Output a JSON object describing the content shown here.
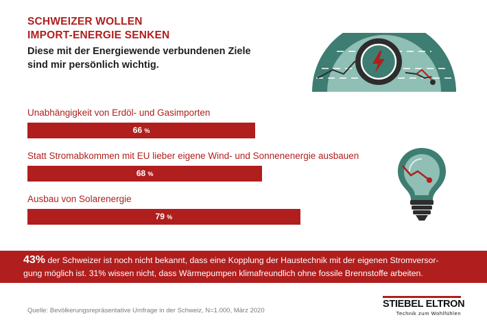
{
  "header": {
    "title_line1": "SCHWEIZER WOLLEN",
    "title_line2": "IMPORT-ENERGIE SENKEN",
    "subtitle_line1": "Diese mit der Energiewende verbundenen Ziele",
    "subtitle_line2": "sind mir persönlich wichtig."
  },
  "chart_data": {
    "type": "bar",
    "orientation": "horizontal",
    "categories": [
      "Unabhängigkeit von Erdöl- und Gasimporten",
      "Statt Stromabkommen mit EU lieber eigene Wind- und Sonnenenergie ausbauen",
      "Ausbau von Solarenergie"
    ],
    "values": [
      66,
      68,
      79
    ],
    "value_labels": [
      "66",
      "68",
      "79"
    ],
    "unit": "%",
    "xlim": [
      0,
      100
    ],
    "grid": false,
    "bar_color": "#b01e1e"
  },
  "banner": {
    "highlight": "43%",
    "line1_rest": " der Schweizer ist noch nicht bekannt, dass eine Kopplung der Haustechnik mit der eigenen Stromversor-",
    "line2": "gung möglich ist. 31% wissen nicht, dass Wärmepumpen klimafreundlich ohne fossile Brennstoffe arbeiten."
  },
  "footer": {
    "source": "Quelle: Bevölkerungsrepräsentative Umfrage in der Schweiz, N=1.000, März 2020"
  },
  "brand": {
    "name": "STIEBEL ELTRON",
    "tagline": "Technik zum Wohlfühlen"
  },
  "colors": {
    "accent": "#b01e1e",
    "teal_dark": "#3e7d72",
    "teal_light": "#8fbfb5",
    "charcoal": "#2d2d2d"
  },
  "icons": [
    "half-gauge-lightning-icon",
    "light-bulb-icon"
  ]
}
